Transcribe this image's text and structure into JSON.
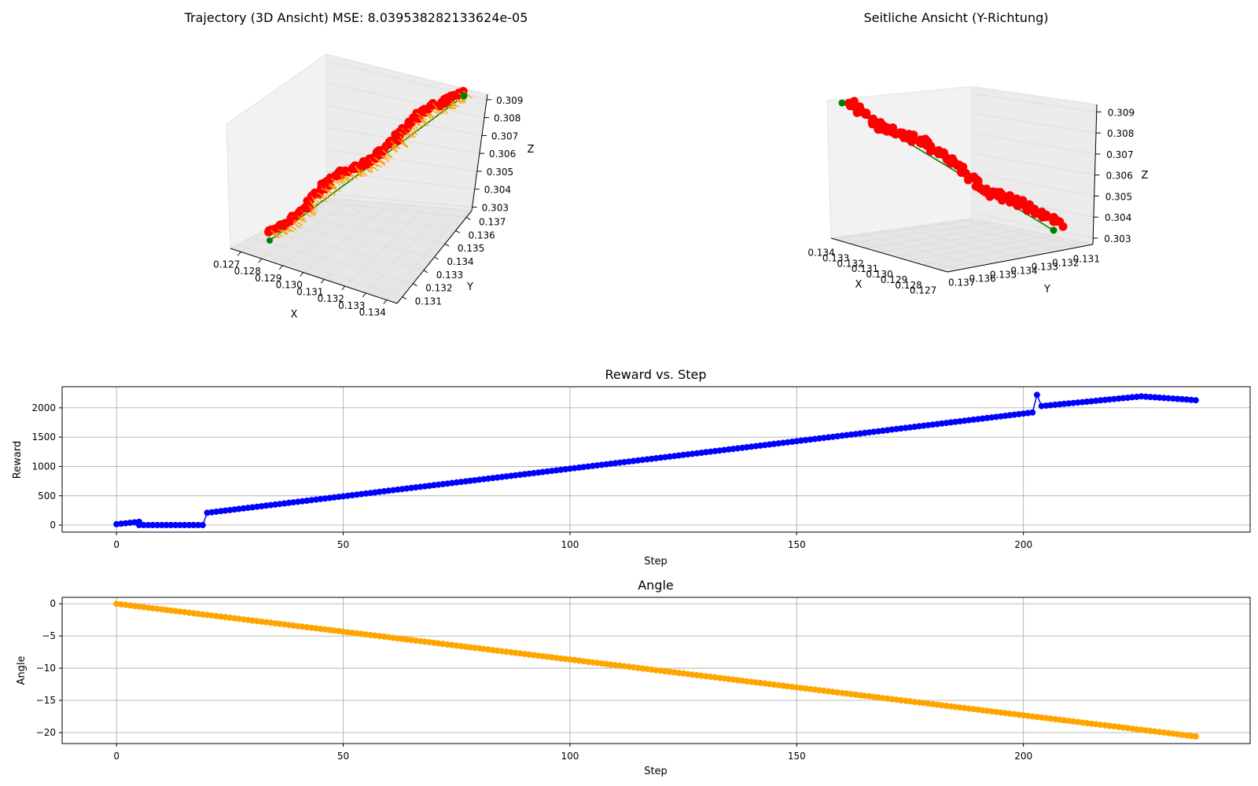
{
  "colors": {
    "trajectory_points": "#ff0000",
    "trajectory_arrows": "#ffa500",
    "reference_line": "#008000",
    "reward_series": "#0000ff",
    "angle_series": "#ffa500",
    "grid": "#b0b0b0",
    "pane": "#f2f2f2"
  },
  "chart_data": [
    {
      "type": "scatter3d",
      "title": "Trajectory (3D Ansicht) MSE: 8.039538282133624e-05",
      "xlabel": "X",
      "ylabel": "Y",
      "zlabel": "Z",
      "xticks": [
        "0.127",
        "0.128",
        "0.129",
        "0.130",
        "0.131",
        "0.132",
        "0.133",
        "0.134"
      ],
      "yticks": [
        "0.131",
        "0.132",
        "0.133",
        "0.134",
        "0.135",
        "0.136",
        "0.137"
      ],
      "zticks": [
        "0.303",
        "0.304",
        "0.305",
        "0.306",
        "0.307",
        "0.308",
        "0.309"
      ],
      "xlim": [
        0.1265,
        0.1345
      ],
      "ylim": [
        0.1305,
        0.1375
      ],
      "zlim": [
        0.3027,
        0.3093
      ],
      "reference_line": {
        "start": [
          0.1271,
          0.131,
          0.3031
        ],
        "end": [
          0.134,
          0.137,
          0.309
        ]
      },
      "grid": true
    },
    {
      "type": "scatter3d",
      "title": "Seitliche Ansicht (Y-Richtung)",
      "xlabel": "X",
      "ylabel": "Y",
      "zlabel": "Z",
      "xticks": [
        "0.134",
        "0.133",
        "0.132",
        "0.131",
        "0.130",
        "0.129",
        "0.128",
        "0.127"
      ],
      "yticks": [
        "0.137",
        "0.136",
        "0.135",
        "0.134",
        "0.133",
        "0.132",
        "0.131"
      ],
      "zticks": [
        "0.303",
        "0.304",
        "0.305",
        "0.306",
        "0.307",
        "0.308",
        "0.309"
      ],
      "grid": true
    },
    {
      "type": "line",
      "title": "Reward vs. Step",
      "xlabel": "Step",
      "ylabel": "Reward",
      "xlim": [
        -12,
        250
      ],
      "ylim": [
        -120,
        2360
      ],
      "xticks": [
        0,
        50,
        100,
        150,
        200
      ],
      "yticks": [
        0,
        500,
        1000,
        1500,
        2000
      ],
      "series": [
        {
          "segments": [
            {
              "x": [
                0,
                5
              ],
              "y": [
                15,
                55
              ]
            },
            {
              "x": [
                5,
                19
              ],
              "y": [
                0,
                0
              ]
            },
            {
              "x": [
                20,
                202
              ],
              "y": [
                210,
                1920
              ]
            },
            {
              "x": [
                203,
                203
              ],
              "y": [
                2220,
                2220
              ]
            },
            {
              "x": [
                204,
                226
              ],
              "y": [
                2030,
                2195
              ]
            },
            {
              "x": [
                227,
                238
              ],
              "y": [
                2190,
                2130
              ]
            }
          ]
        }
      ],
      "grid": true
    },
    {
      "type": "line",
      "title": "Angle",
      "xlabel": "Step",
      "ylabel": "Angle",
      "xlim": [
        -12,
        250
      ],
      "ylim": [
        -21.7,
        1.0
      ],
      "xticks": [
        0,
        50,
        100,
        150,
        200
      ],
      "yticks": [
        0,
        -5,
        -10,
        -15,
        -20
      ],
      "series": [
        {
          "x": [
            0,
            238
          ],
          "y": [
            0,
            -20.6
          ]
        }
      ],
      "grid": true
    }
  ]
}
